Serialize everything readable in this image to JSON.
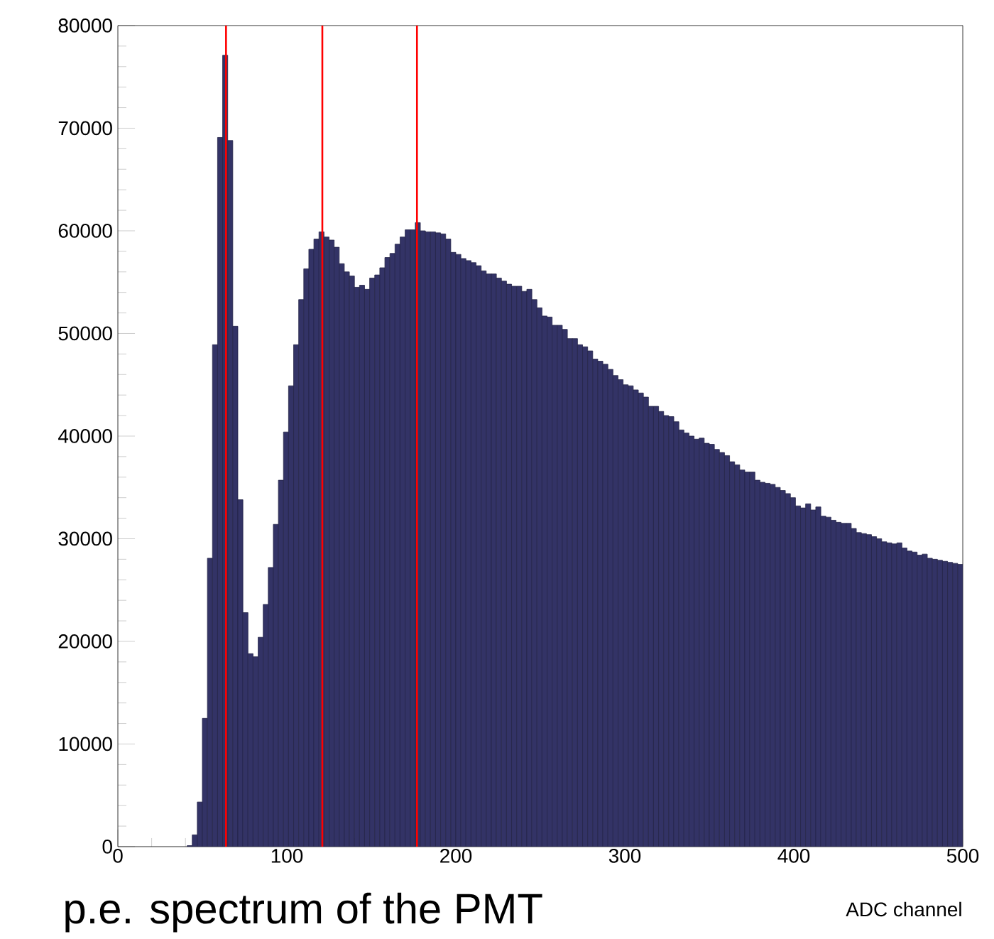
{
  "chart_data": {
    "type": "histogram",
    "title": "p.e. spectrum of the PMT",
    "xlabel": "ADC channel",
    "color": "#333366",
    "bins": [
      41,
      44,
      47,
      50,
      53,
      56,
      59,
      62,
      65,
      68,
      71,
      74,
      77,
      80,
      83,
      86,
      89,
      92,
      95,
      98,
      101,
      104,
      107,
      110,
      113,
      116,
      119,
      122,
      125,
      128,
      131,
      134,
      137,
      140,
      143,
      146,
      149,
      152,
      155,
      158,
      161,
      164,
      167,
      170,
      173,
      176,
      179,
      182,
      185,
      188,
      191,
      194,
      197,
      200,
      203,
      206,
      209,
      212,
      215,
      218,
      221,
      224,
      227,
      230,
      233,
      236,
      239,
      242,
      245,
      248,
      251,
      254,
      257,
      260,
      263,
      266,
      269,
      272,
      275,
      278,
      281,
      284,
      287,
      290,
      293,
      296,
      299,
      302,
      305,
      308,
      311,
      314,
      317,
      320,
      323,
      326,
      329,
      332,
      335,
      338,
      341,
      344,
      347,
      350,
      353,
      356,
      359,
      362,
      365,
      368,
      371,
      374,
      377,
      380,
      383,
      386,
      389,
      392,
      395,
      398,
      401,
      404,
      407,
      410,
      413,
      416,
      419,
      422,
      425,
      428,
      431,
      434,
      437,
      440,
      443,
      446,
      449,
      452,
      455,
      458,
      461,
      464,
      467,
      470,
      473,
      476,
      479,
      482,
      485,
      488,
      491,
      494,
      497,
      500
    ],
    "values": [
      100,
      1150,
      4350,
      12500,
      28100,
      48900,
      69100,
      77100,
      68800,
      50700,
      33800,
      22800,
      18800,
      18500,
      20400,
      23600,
      27200,
      31400,
      35700,
      40400,
      44900,
      48900,
      53300,
      56300,
      58200,
      59200,
      59900,
      59400,
      59100,
      58400,
      56800,
      56000,
      55600,
      54500,
      54700,
      54300,
      55400,
      55700,
      56400,
      57400,
      57800,
      58700,
      59400,
      60100,
      60100,
      60800,
      60000,
      59900,
      59900,
      59800,
      59700,
      59200,
      57900,
      57700,
      57300,
      57100,
      56900,
      56600,
      56100,
      55800,
      55800,
      55400,
      55100,
      54800,
      54600,
      54600,
      54100,
      54300,
      53300,
      52500,
      51700,
      51600,
      50800,
      50800,
      50400,
      49500,
      49500,
      48900,
      48700,
      48300,
      47500,
      47300,
      47000,
      46500,
      45900,
      45500,
      45000,
      44900,
      44500,
      44200,
      43800,
      42900,
      42900,
      42400,
      42000,
      41900,
      41400,
      40600,
      40300,
      40000,
      39700,
      39800,
      39300,
      39200,
      38700,
      38400,
      38100,
      37500,
      37200,
      36700,
      36500,
      36500,
      35700,
      35500,
      35400,
      35300,
      35000,
      34700,
      34400,
      34000,
      33200,
      33000,
      33400,
      32800,
      33100,
      32200,
      32100,
      31800,
      31600,
      31500,
      31500,
      31000,
      30600,
      30500,
      30400,
      30200,
      30000,
      29700,
      29600,
      29500,
      29600,
      29100,
      28800,
      28700,
      28400,
      28500,
      28100,
      28000,
      27900,
      27800,
      27700,
      27600,
      27500
    ],
    "xlim": [
      0,
      500
    ],
    "xticks": [
      0,
      100,
      200,
      300,
      400,
      500
    ],
    "ylim": [
      0,
      80000
    ],
    "yticks": [
      0,
      10000,
      20000,
      30000,
      40000,
      50000,
      60000,
      70000,
      80000
    ],
    "ref_lines": [
      {
        "axis": "x",
        "value": 64,
        "color": "#ff0000"
      },
      {
        "axis": "x",
        "value": 121,
        "color": "#ff0000"
      },
      {
        "axis": "x",
        "value": 177,
        "color": "#ff0000"
      }
    ]
  }
}
